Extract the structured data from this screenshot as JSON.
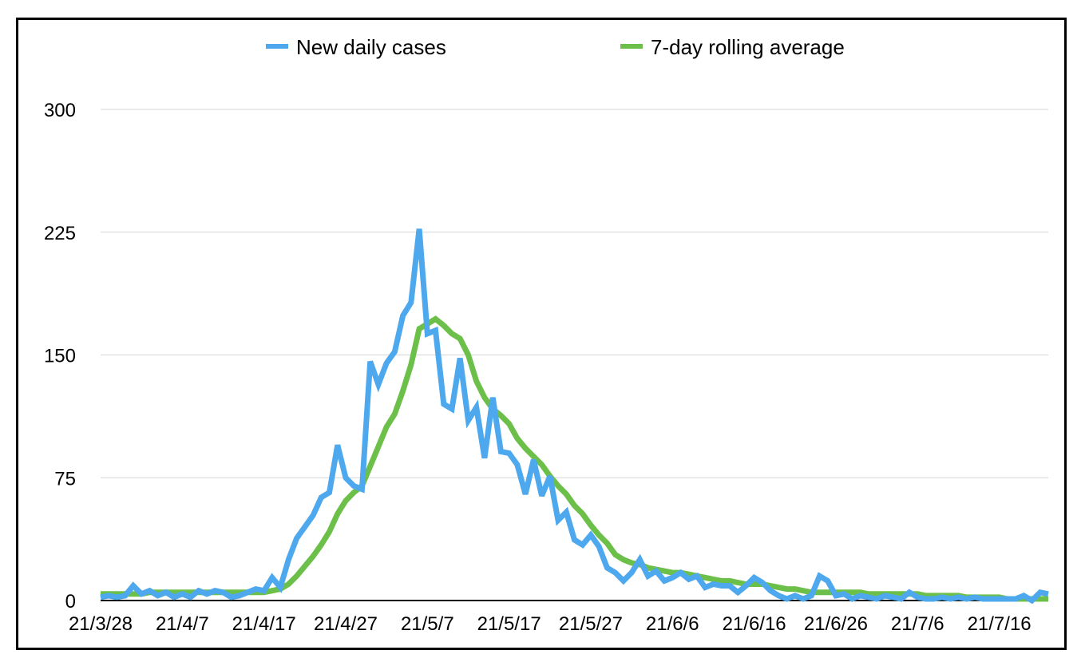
{
  "chart_data": {
    "type": "line",
    "title": "",
    "xlabel": "",
    "ylabel": "",
    "ylim": [
      0,
      300
    ],
    "yticks": [
      0,
      75,
      150,
      225,
      300
    ],
    "grid": true,
    "legend_position": "top-center",
    "x_start": "21/3/28",
    "x_tick_labels": [
      "21/3/28",
      "21/4/7",
      "21/4/17",
      "21/4/27",
      "21/5/7",
      "21/5/17",
      "21/5/27",
      "21/6/6",
      "21/6/16",
      "21/6/26",
      "21/7/6",
      "21/7/16"
    ],
    "x_tick_index": [
      0,
      10,
      20,
      30,
      40,
      50,
      60,
      70,
      80,
      90,
      100,
      110
    ],
    "series": [
      {
        "name": "New daily cases",
        "color": "#4da8ee",
        "values": [
          2,
          3,
          2,
          3,
          9,
          4,
          6,
          3,
          5,
          2,
          4,
          2,
          6,
          4,
          6,
          5,
          2,
          3,
          5,
          7,
          6,
          14,
          8,
          25,
          38,
          45,
          52,
          63,
          66,
          95,
          75,
          70,
          68,
          146,
          132,
          145,
          152,
          174,
          182,
          227,
          163,
          165,
          120,
          117,
          148,
          110,
          118,
          87,
          124,
          91,
          90,
          83,
          65,
          86,
          64,
          76,
          49,
          54,
          37,
          34,
          40,
          33,
          20,
          17,
          12,
          17,
          25,
          15,
          18,
          12,
          14,
          17,
          13,
          15,
          8,
          10,
          9,
          9,
          5,
          9,
          14,
          11,
          6,
          3,
          1,
          3,
          1,
          3,
          15,
          12,
          3,
          4,
          1,
          3,
          2,
          1,
          3,
          2,
          1,
          5,
          2,
          1,
          1,
          2,
          1,
          2,
          1,
          2,
          1,
          1,
          1,
          1,
          1,
          3,
          0,
          5,
          4
        ]
      },
      {
        "name": "7-day rolling average",
        "color": "#6cc04a",
        "values": [
          4,
          4,
          4,
          4,
          4,
          4,
          5,
          5,
          5,
          5,
          5,
          5,
          5,
          5,
          5,
          5,
          5,
          5,
          5,
          5,
          5,
          6,
          7,
          10,
          15,
          21,
          27,
          34,
          42,
          53,
          61,
          66,
          70,
          82,
          94,
          106,
          114,
          128,
          144,
          166,
          169,
          172,
          168,
          163,
          160,
          150,
          134,
          124,
          117,
          113,
          108,
          99,
          93,
          88,
          83,
          76,
          70,
          65,
          58,
          53,
          46,
          40,
          35,
          28,
          25,
          23,
          22,
          20,
          19,
          18,
          17,
          17,
          16,
          15,
          14,
          13,
          12,
          12,
          11,
          10,
          10,
          10,
          9,
          8,
          7,
          7,
          6,
          5,
          5,
          5,
          5,
          5,
          5,
          5,
          4,
          4,
          4,
          4,
          4,
          4,
          4,
          3,
          3,
          3,
          3,
          3,
          2,
          2,
          2,
          2,
          2,
          1,
          1,
          1,
          1,
          1,
          1
        ]
      }
    ]
  }
}
